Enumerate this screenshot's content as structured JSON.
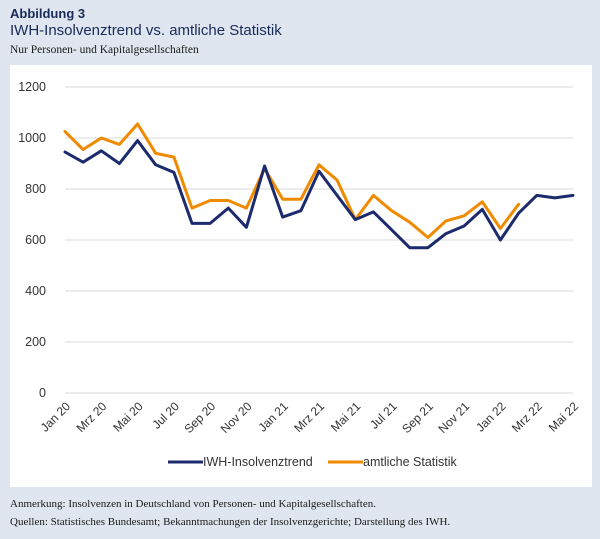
{
  "header": {
    "label": "Abbildung 3",
    "title": "IWH-Insolvenztrend vs. amtliche Statistik",
    "subtitle": "Nur Personen- und Kapitalgesellschaften"
  },
  "footer": {
    "note": "Anmerkung: Insolvenzen in Deutschland von Personen- und Kapitalgesellschaften.",
    "sources": "Quellen: Statistisches Bundesamt; Bekanntmachungen der Insolvenzgerichte; Darstellung des IWH."
  },
  "chart_data": {
    "type": "line",
    "title": "IWH-Insolvenztrend vs. amtliche Statistik",
    "subtitle": "Nur Personen- und Kapitalgesellschaften",
    "xlabel": "",
    "ylabel": "",
    "ylim": [
      0,
      1200
    ],
    "yticks": [
      0,
      200,
      400,
      600,
      800,
      1000,
      1200
    ],
    "grid": "horizontal",
    "legend": "bottom",
    "x": [
      "Jan 20",
      "Feb 20",
      "Mrz 20",
      "Apr 20",
      "Mai 20",
      "Jun 20",
      "Jul 20",
      "Aug 20",
      "Sep 20",
      "Okt 20",
      "Nov 20",
      "Dez 20",
      "Jan 21",
      "Feb 21",
      "Mrz 21",
      "Apr 21",
      "Mai 21",
      "Jun 21",
      "Jul 21",
      "Aug 21",
      "Sep 21",
      "Okt 21",
      "Nov 21",
      "Dez 21",
      "Jan 22",
      "Feb 22",
      "Mrz 22",
      "Apr 22",
      "Mai 22"
    ],
    "xtick_labels": [
      "Jan 20",
      "Mrz 20",
      "Mai 20",
      "Jul 20",
      "Sep 20",
      "Nov 20",
      "Jan 21",
      "Mrz 21",
      "Mai 21",
      "Jul 21",
      "Sep 21",
      "Nov 21",
      "Jan 22",
      "Mrz 22",
      "Mai 22"
    ],
    "series": [
      {
        "name": "IWH-Insolvenztrend",
        "color": "#1c2a6e",
        "values": [
          945,
          905,
          950,
          900,
          990,
          895,
          865,
          665,
          665,
          725,
          650,
          890,
          690,
          715,
          870,
          775,
          680,
          710,
          640,
          570,
          570,
          625,
          655,
          720,
          600,
          705,
          775,
          765,
          775
        ]
      },
      {
        "name": "amtliche Statistik",
        "color": "#f08a00",
        "values": [
          1025,
          955,
          1000,
          975,
          1055,
          940,
          925,
          725,
          755,
          755,
          725,
          880,
          760,
          760,
          895,
          835,
          680,
          775,
          715,
          670,
          610,
          675,
          695,
          750,
          645,
          740,
          null,
          null,
          null
        ]
      }
    ]
  }
}
